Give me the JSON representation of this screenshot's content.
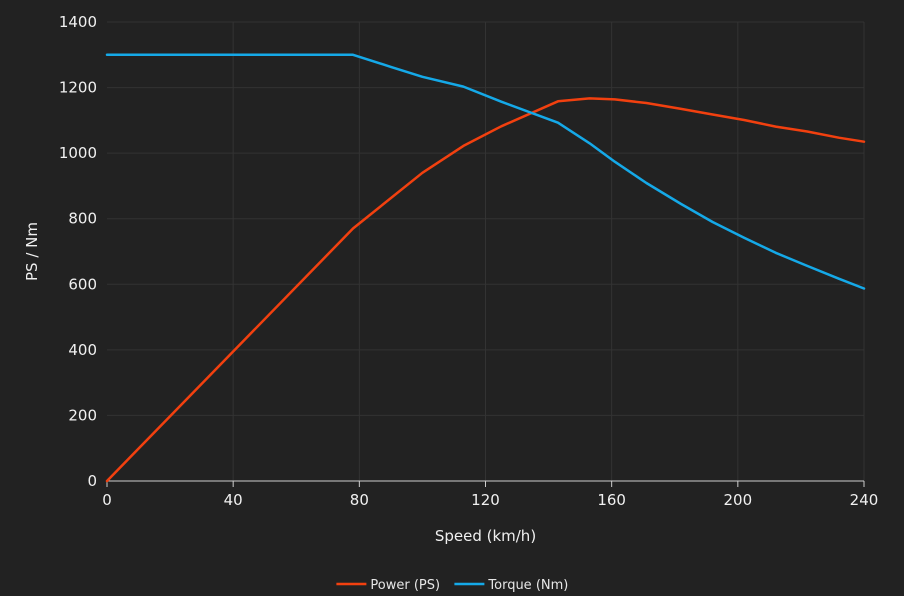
{
  "chart_data": {
    "type": "line",
    "xlabel": "Speed (km/h)",
    "ylabel": "PS / Nm",
    "xlim": [
      0,
      240
    ],
    "ylim": [
      0,
      1400
    ],
    "xticks": [
      0,
      40,
      80,
      120,
      160,
      200,
      240
    ],
    "yticks": [
      0,
      200,
      400,
      600,
      800,
      1000,
      1200,
      1400
    ],
    "grid": true,
    "legend_position": "bottom-center",
    "background": "#222222",
    "series": [
      {
        "name": "Power (PS)",
        "color": "#f2400f",
        "x": [
          0,
          78,
          100,
          113,
          125,
          143,
          153,
          161,
          171,
          182,
          192,
          202,
          212,
          222,
          232,
          240
        ],
        "y": [
          0,
          770,
          940,
          1022,
          1082,
          1158,
          1167,
          1164,
          1153,
          1135,
          1118,
          1101,
          1081,
          1066,
          1047,
          1035
        ]
      },
      {
        "name": "Torque (Nm)",
        "color": "#15a9e8",
        "x": [
          0,
          78,
          90,
          100,
          113,
          125,
          143,
          153,
          161,
          171,
          182,
          192,
          202,
          212,
          222,
          232,
          240
        ],
        "y": [
          1300,
          1300,
          1263,
          1233,
          1203,
          1157,
          1093,
          1030,
          974,
          909,
          845,
          790,
          742,
          696,
          656,
          617,
          587
        ]
      }
    ]
  }
}
